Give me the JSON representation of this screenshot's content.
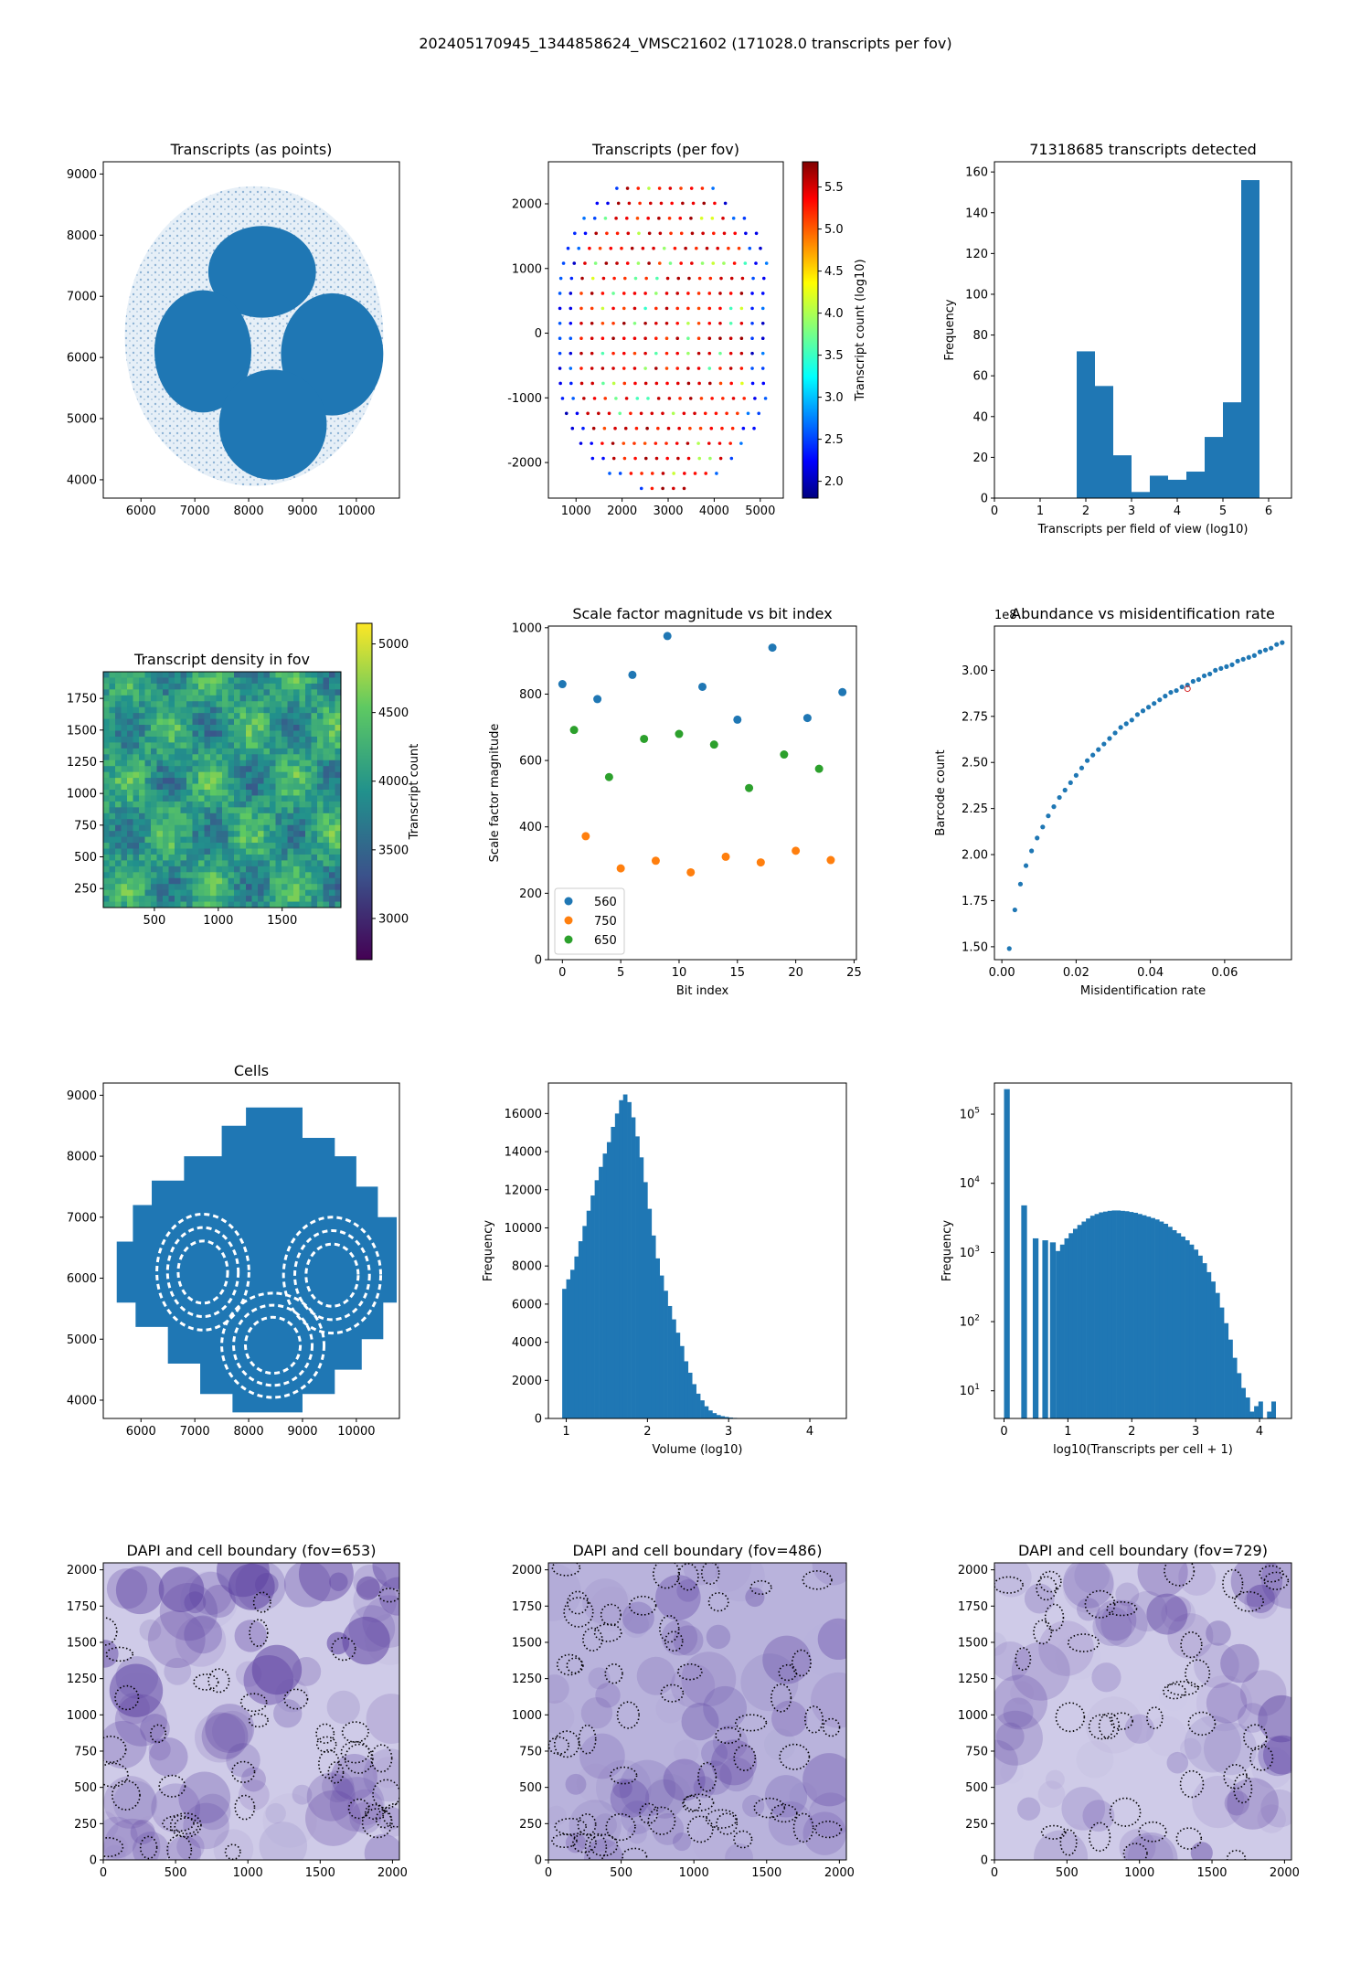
{
  "suptitle": "202405170945_1344858624_VMSC21602 (171028.0 transcripts per fov)",
  "colors": {
    "blue": "#1f77b4",
    "orange": "#ff7f0e",
    "green": "#2ca02c",
    "dapi_dark": "#4b2d8f",
    "dapi_light": "#dcdcf0"
  },
  "chart_data": [
    {
      "id": "transcripts_points",
      "type": "scatter",
      "title": "Transcripts (as points)",
      "xlim": [
        5300,
        10800
      ],
      "ylim": [
        3700,
        9200
      ],
      "xticks": [
        6000,
        7000,
        8000,
        9000,
        10000
      ],
      "yticks": [
        4000,
        5000,
        6000,
        7000,
        8000,
        9000
      ],
      "xlabel": "",
      "ylabel": "",
      "blobs": [
        {
          "name": "upper",
          "cx": 8250,
          "cy": 7400,
          "rx": 1000,
          "ry": 750
        },
        {
          "name": "left",
          "cx": 7150,
          "cy": 6100,
          "rx": 900,
          "ry": 1000
        },
        {
          "name": "right",
          "cx": 9550,
          "cy": 6050,
          "rx": 950,
          "ry": 1000
        },
        {
          "name": "bottom",
          "cx": 8450,
          "cy": 4900,
          "rx": 1000,
          "ry": 900
        }
      ],
      "background_extent": {
        "xmin": 5700,
        "xmax": 10500,
        "ymin": 3900,
        "ymax": 8800
      }
    },
    {
      "id": "transcripts_per_fov",
      "type": "scatter",
      "title": "Transcripts (per fov)",
      "xlim": [
        400,
        5500
      ],
      "ylim": [
        -2550,
        2650
      ],
      "xticks": [
        1000,
        2000,
        3000,
        4000,
        5000
      ],
      "yticks": [
        -2000,
        -1000,
        0,
        1000,
        2000
      ],
      "colorbar": {
        "label": "Transcript count (log10)",
        "min": 1.8,
        "max": 5.8,
        "ticks": [
          2.0,
          2.5,
          3.0,
          3.5,
          4.0,
          4.5,
          5.0,
          5.5
        ]
      },
      "grid_spacing": 232,
      "x_center": 2950,
      "y_range": [
        -2400,
        2400
      ],
      "half_width_at_center": 2300
    },
    {
      "id": "transcript_histogram",
      "type": "bar",
      "title": "71318685 transcripts detected",
      "xlabel": "Transcripts per field of view (log10)",
      "ylabel": "Frequency",
      "xlim": [
        0,
        6.5
      ],
      "ylim": [
        0,
        165
      ],
      "xticks": [
        0,
        1,
        2,
        3,
        4,
        5,
        6
      ],
      "yticks": [
        0,
        20,
        40,
        60,
        80,
        100,
        120,
        140,
        160
      ],
      "bin_edges": [
        1.8,
        2.2,
        2.6,
        3.0,
        3.4,
        3.8,
        4.2,
        4.6,
        5.0,
        5.4,
        5.8
      ],
      "values": [
        72,
        55,
        21,
        3,
        11,
        9,
        13,
        30,
        47,
        156
      ]
    },
    {
      "id": "density_fov",
      "type": "heatmap",
      "title": "Transcript density in fov",
      "xlim": [
        100,
        1960
      ],
      "ylim": [
        100,
        1960
      ],
      "xticks": [
        500,
        1000,
        1500
      ],
      "yticks": [
        250,
        500,
        750,
        1000,
        1250,
        1500,
        1750
      ],
      "colorbar": {
        "label": "Transcript count",
        "min": 2700,
        "max": 5150,
        "ticks": [
          3000,
          3500,
          4000,
          4500,
          5000
        ]
      }
    },
    {
      "id": "scale_factors",
      "type": "scatter",
      "title": "Scale factor magnitude vs bit index",
      "xlabel": "Bit index",
      "ylabel": "Scale factor magnitude",
      "xlim": [
        -1.2,
        25.2
      ],
      "ylim": [
        0,
        1005
      ],
      "xticks": [
        0,
        5,
        10,
        15,
        20,
        25
      ],
      "yticks": [
        0,
        200,
        400,
        600,
        800,
        1000
      ],
      "series": [
        {
          "name": "560",
          "color": "#1f77b4",
          "x": [
            0,
            3,
            6,
            9,
            12,
            15,
            18,
            21,
            24
          ],
          "y": [
            830,
            785,
            858,
            975,
            822,
            723,
            940,
            728,
            806
          ]
        },
        {
          "name": "750",
          "color": "#ff7f0e",
          "x": [
            2,
            5,
            8,
            11,
            14,
            17,
            20,
            23
          ],
          "y": [
            372,
            275,
            298,
            263,
            310,
            293,
            328,
            300
          ]
        },
        {
          "name": "650",
          "color": "#2ca02c",
          "x": [
            1,
            4,
            7,
            10,
            13,
            16,
            19,
            22
          ],
          "y": [
            692,
            550,
            665,
            680,
            648,
            517,
            618,
            575
          ]
        }
      ],
      "legend": "lower-left"
    },
    {
      "id": "abundance_misid",
      "type": "scatter",
      "title": "Abundance vs misidentification rate",
      "xlabel": "Misidentification rate",
      "ylabel": "Barcode count",
      "offset_label": "1e8",
      "xlim": [
        -0.002,
        0.078
      ],
      "ylim": [
        1.43,
        3.24
      ],
      "xticks": [
        0.0,
        0.02,
        0.04,
        0.06
      ],
      "yticks": [
        1.5,
        1.75,
        2.0,
        2.25,
        2.5,
        2.75,
        3.0
      ],
      "x": [
        0.002,
        0.0035,
        0.005,
        0.0065,
        0.008,
        0.0095,
        0.011,
        0.0125,
        0.014,
        0.0155,
        0.017,
        0.0185,
        0.02,
        0.0215,
        0.023,
        0.0245,
        0.026,
        0.0275,
        0.029,
        0.0305,
        0.032,
        0.0335,
        0.035,
        0.0365,
        0.038,
        0.0395,
        0.041,
        0.0425,
        0.044,
        0.0455,
        0.047,
        0.0485,
        0.05,
        0.0515,
        0.053,
        0.0545,
        0.056,
        0.0575,
        0.059,
        0.0605,
        0.062,
        0.0635,
        0.065,
        0.0665,
        0.068,
        0.0695,
        0.071,
        0.0725,
        0.074,
        0.0755
      ],
      "y": [
        1.49,
        1.7,
        1.84,
        1.94,
        2.02,
        2.09,
        2.15,
        2.21,
        2.26,
        2.31,
        2.35,
        2.39,
        2.43,
        2.47,
        2.51,
        2.54,
        2.57,
        2.6,
        2.63,
        2.66,
        2.69,
        2.71,
        2.73,
        2.76,
        2.78,
        2.8,
        2.82,
        2.84,
        2.86,
        2.88,
        2.89,
        2.91,
        2.92,
        2.94,
        2.95,
        2.97,
        2.98,
        3.0,
        3.01,
        3.02,
        3.03,
        3.05,
        3.06,
        3.07,
        3.08,
        3.1,
        3.11,
        3.12,
        3.14,
        3.15
      ],
      "highlight": {
        "x": 0.05,
        "y": 2.9,
        "color": "#d62728"
      }
    },
    {
      "id": "cells",
      "type": "scatter",
      "title": "Cells",
      "xlim": [
        5300,
        10800
      ],
      "ylim": [
        3700,
        9200
      ],
      "xticks": [
        6000,
        7000,
        8000,
        9000,
        10000
      ],
      "yticks": [
        4000,
        5000,
        6000,
        7000,
        8000,
        9000
      ],
      "outline": [
        [
          7700,
          3800
        ],
        [
          9000,
          3800
        ],
        [
          9000,
          4100
        ],
        [
          9600,
          4100
        ],
        [
          9600,
          4500
        ],
        [
          10100,
          4500
        ],
        [
          10100,
          5000
        ],
        [
          10500,
          5000
        ],
        [
          10500,
          5600
        ],
        [
          10750,
          5600
        ],
        [
          10750,
          7000
        ],
        [
          10400,
          7000
        ],
        [
          10400,
          7500
        ],
        [
          10000,
          7500
        ],
        [
          10000,
          8000
        ],
        [
          9600,
          8000
        ],
        [
          9600,
          8300
        ],
        [
          9000,
          8300
        ],
        [
          9000,
          8800
        ],
        [
          7950,
          8800
        ],
        [
          7950,
          8500
        ],
        [
          7500,
          8500
        ],
        [
          7500,
          8000
        ],
        [
          6800,
          8000
        ],
        [
          6800,
          7600
        ],
        [
          6200,
          7600
        ],
        [
          6200,
          7200
        ],
        [
          5850,
          7200
        ],
        [
          5850,
          6600
        ],
        [
          5550,
          6600
        ],
        [
          5550,
          5600
        ],
        [
          5900,
          5600
        ],
        [
          5900,
          5200
        ],
        [
          6500,
          5200
        ],
        [
          6500,
          4600
        ],
        [
          7100,
          4600
        ],
        [
          7100,
          4100
        ],
        [
          7700,
          4100
        ]
      ]
    },
    {
      "id": "volume_hist",
      "type": "bar",
      "title": "",
      "xlabel": "Volume (log10)",
      "ylabel": "Frequency",
      "xlim": [
        0.78,
        4.45
      ],
      "ylim": [
        0,
        17600
      ],
      "xticks": [
        1,
        2,
        3,
        4
      ],
      "yticks": [
        0,
        2000,
        4000,
        6000,
        8000,
        10000,
        12000,
        14000,
        16000
      ],
      "bin_start": 0.95,
      "bin_width": 0.05,
      "values": [
        6800,
        7300,
        7800,
        8500,
        9300,
        10100,
        10900,
        11700,
        12500,
        13200,
        13900,
        14500,
        15300,
        16000,
        16700,
        17000,
        16600,
        15800,
        14800,
        13700,
        12400,
        11000,
        9600,
        8400,
        7500,
        6700,
        5900,
        5200,
        4500,
        3800,
        3000,
        2400,
        1800,
        1300,
        950,
        640,
        420,
        280,
        180,
        120,
        80,
        50,
        30,
        20
      ]
    },
    {
      "id": "transcripts_per_cell",
      "type": "bar",
      "title": "",
      "xlabel": "log10(Transcripts per cell + 1)",
      "ylabel": "Frequency",
      "scale": "log",
      "xlim": [
        -0.15,
        4.5
      ],
      "ylim_log": [
        0.6,
        5.45
      ],
      "xticks": [
        0,
        1,
        2,
        3,
        4
      ],
      "yticks_exp": [
        1,
        2,
        3,
        4,
        5
      ],
      "bins": [
        {
          "x0": 0.0,
          "x1": 0.09,
          "v": 230000
        },
        {
          "x0": 0.27,
          "x1": 0.36,
          "v": 4800
        },
        {
          "x0": 0.45,
          "x1": 0.54,
          "v": 1600
        },
        {
          "x0": 0.6,
          "x1": 0.69,
          "v": 1500
        },
        {
          "x0": 0.72,
          "x1": 0.81,
          "v": 1400
        }
      ],
      "cont_start": 0.81,
      "cont_width": 0.0675,
      "cont_values": [
        1050,
        1300,
        1600,
        1900,
        2200,
        2500,
        2800,
        3100,
        3400,
        3600,
        3800,
        3900,
        4000,
        4050,
        4050,
        4000,
        3950,
        3850,
        3750,
        3600,
        3450,
        3300,
        3150,
        3000,
        2800,
        2600,
        2350,
        2100,
        1900,
        1700,
        1500,
        1300,
        1100,
        900,
        700,
        520,
        380,
        260,
        160,
        95,
        55,
        30,
        18,
        11,
        8,
        5,
        6,
        7,
        4,
        5,
        7,
        4
      ]
    },
    {
      "id": "dapi_653",
      "type": "heatmap",
      "title": "DAPI and cell boundary (fov=653)",
      "xlim": [
        0,
        2048
      ],
      "ylim": [
        0,
        2048
      ],
      "xticks": [
        0,
        500,
        1000,
        1500,
        2000
      ],
      "yticks": [
        0,
        250,
        500,
        750,
        1000,
        1250,
        1500,
        1750,
        2000
      ]
    },
    {
      "id": "dapi_486",
      "type": "heatmap",
      "title": "DAPI and cell boundary (fov=486)",
      "xlim": [
        0,
        2048
      ],
      "ylim": [
        0,
        2048
      ],
      "xticks": [
        0,
        500,
        1000,
        1500,
        2000
      ],
      "yticks": [
        0,
        250,
        500,
        750,
        1000,
        1250,
        1500,
        1750,
        2000
      ]
    },
    {
      "id": "dapi_729",
      "type": "heatmap",
      "title": "DAPI and cell boundary (fov=729)",
      "xlim": [
        0,
        2048
      ],
      "ylim": [
        0,
        2048
      ],
      "xticks": [
        0,
        500,
        1000,
        1500,
        2000
      ],
      "yticks": [
        0,
        250,
        500,
        750,
        1000,
        1250,
        1500,
        1750,
        2000
      ]
    }
  ]
}
